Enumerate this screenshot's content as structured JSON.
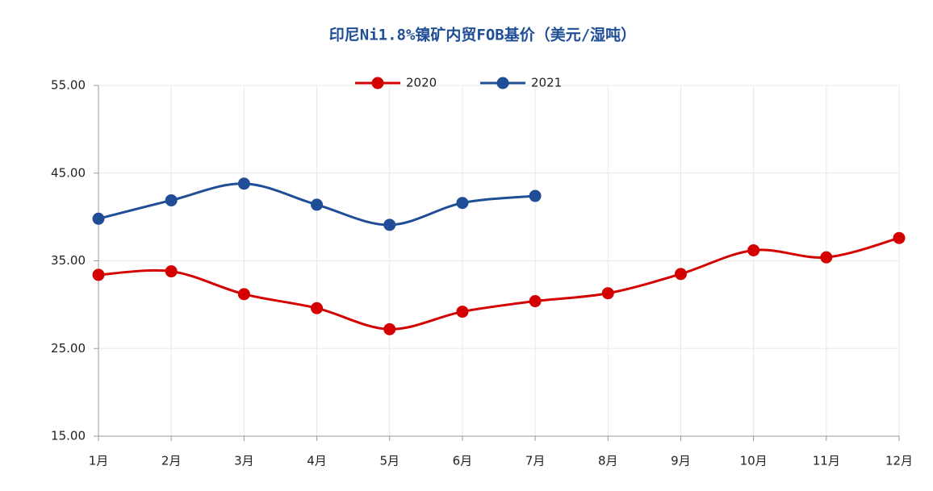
{
  "chart_data": {
    "type": "line",
    "title": "印尼Ni1.8%镍矿内贸FOB基价（美元/湿吨）",
    "categories": [
      "1月",
      "2月",
      "3月",
      "4月",
      "5月",
      "6月",
      "7月",
      "8月",
      "9月",
      "10月",
      "11月",
      "12月"
    ],
    "series": [
      {
        "name": "2020",
        "color": "#d40000",
        "values": [
          33.4,
          33.8,
          31.2,
          29.6,
          27.2,
          29.2,
          30.4,
          31.3,
          33.5,
          36.2,
          35.4,
          37.6
        ]
      },
      {
        "name": "2021",
        "color": "#1f4e96",
        "values": [
          39.8,
          41.9,
          43.8,
          41.4,
          39.1,
          41.6,
          42.4,
          null,
          null,
          null,
          null,
          null
        ]
      }
    ],
    "ylim": [
      15,
      55
    ],
    "yticks": [
      {
        "value": 15,
        "label": "15.00"
      },
      {
        "value": 25,
        "label": "25.00"
      },
      {
        "value": 35,
        "label": "35.00"
      },
      {
        "value": 45,
        "label": "45.00"
      },
      {
        "value": 55,
        "label": "55.00"
      }
    ],
    "grid": true,
    "legend": "top"
  }
}
